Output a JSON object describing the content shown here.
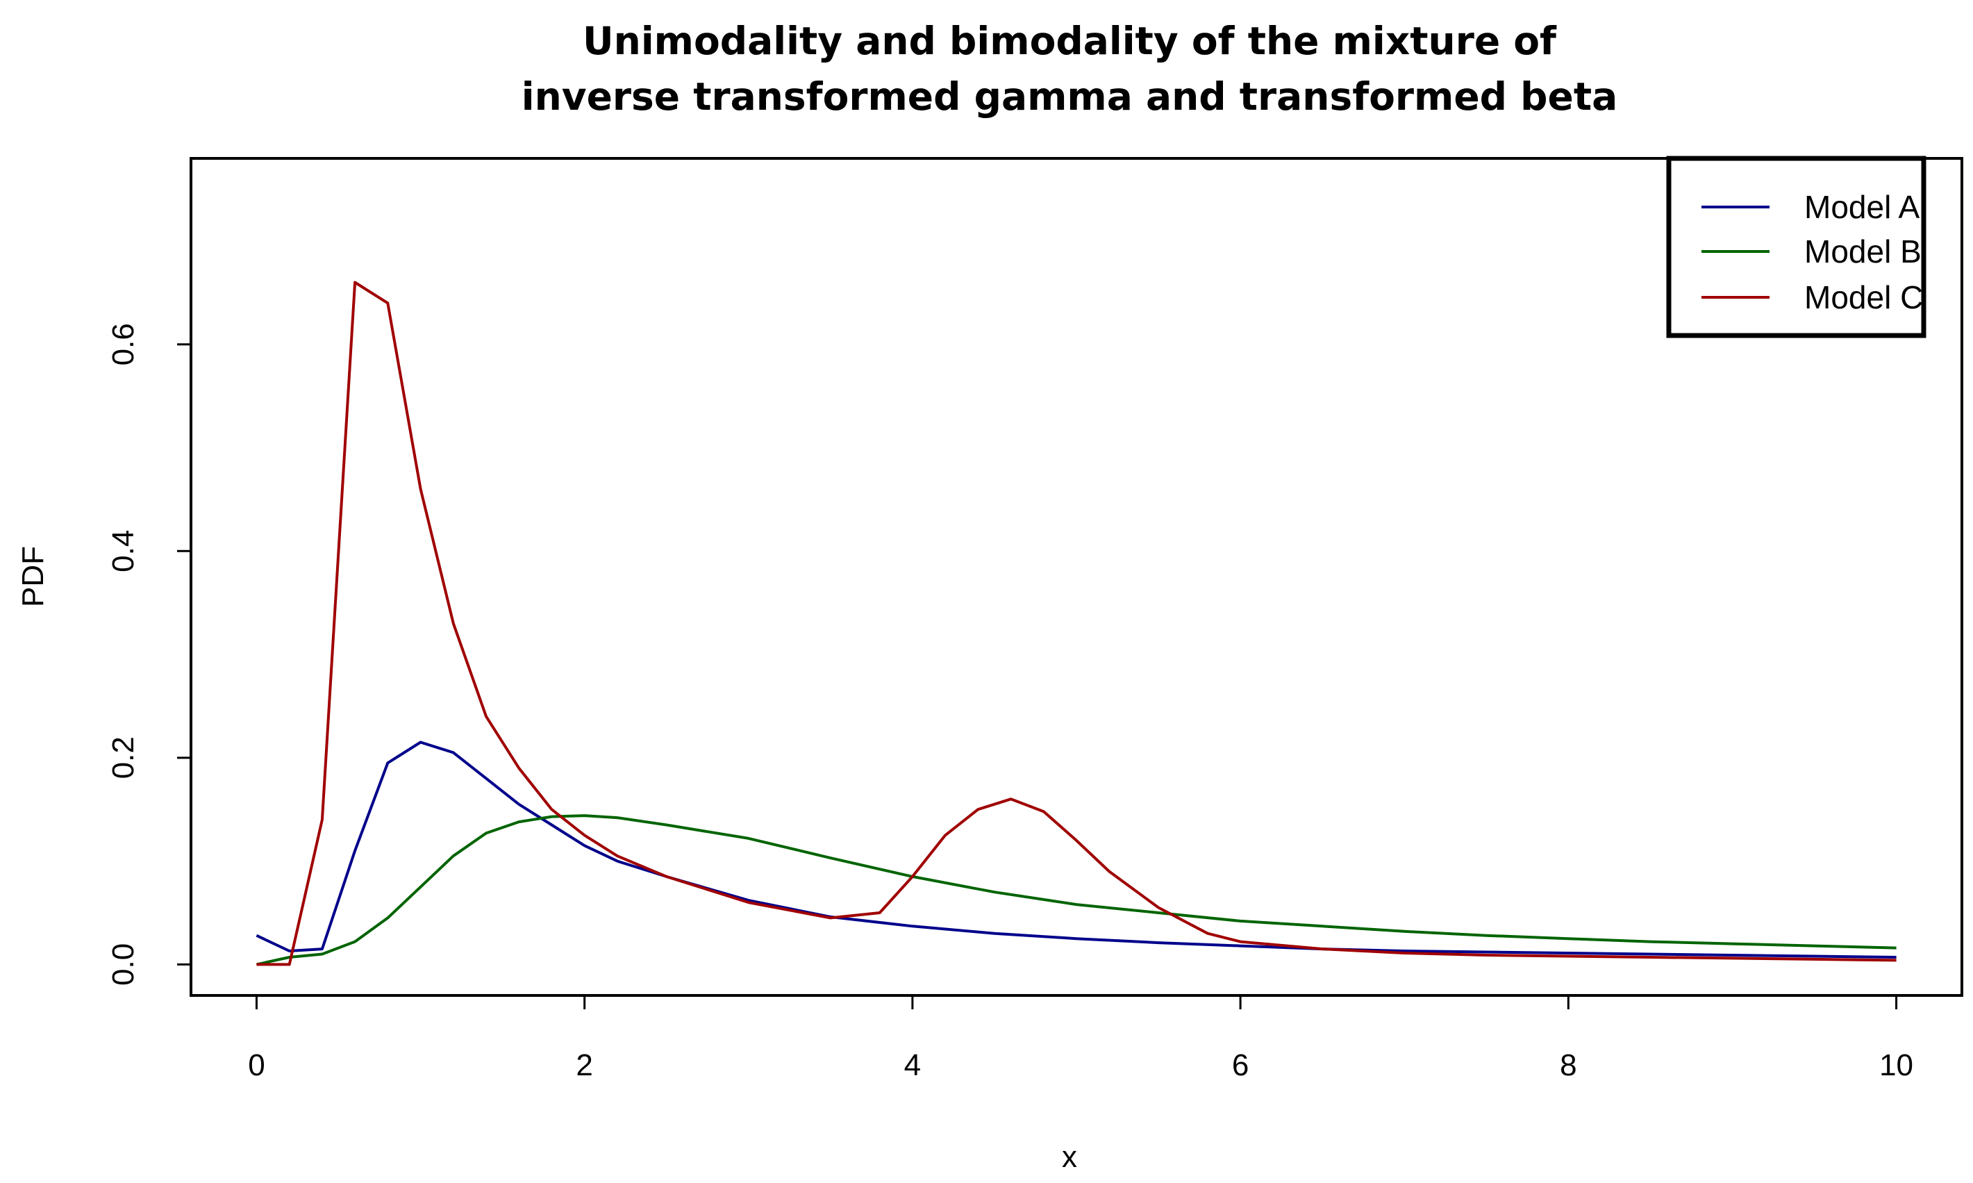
{
  "chart_data": {
    "type": "line",
    "title_lines": [
      "Unimodality and bimodality of the mixture of",
      "inverse transformed gamma and transformed beta"
    ],
    "xlabel": "x",
    "ylabel": "PDF",
    "xlim": [
      -0.4,
      10.4
    ],
    "ylim": [
      -0.03,
      0.78
    ],
    "xticks": [
      0,
      2,
      4,
      6,
      8,
      10
    ],
    "xtick_labels": [
      "0",
      "2",
      "4",
      "6",
      "8",
      "10"
    ],
    "yticks": [
      0.0,
      0.2,
      0.4,
      0.6
    ],
    "ytick_labels": [
      "0.0",
      "0.2",
      "0.4",
      "0.6"
    ],
    "grid": false,
    "legend_position": "top-right",
    "series": [
      {
        "name": "Model A",
        "color": "#00008B",
        "x": [
          0,
          0.2,
          0.4,
          0.6,
          0.8,
          1.0,
          1.2,
          1.4,
          1.6,
          1.8,
          2.0,
          2.2,
          2.5,
          3.0,
          3.5,
          4.0,
          4.5,
          5.0,
          5.5,
          6.0,
          6.5,
          7.0,
          7.5,
          8.0,
          8.5,
          9.0,
          9.5,
          10.0
        ],
        "y": [
          0.028,
          0.013,
          0.015,
          0.11,
          0.195,
          0.215,
          0.205,
          0.18,
          0.155,
          0.135,
          0.115,
          0.1,
          0.085,
          0.062,
          0.046,
          0.037,
          0.03,
          0.025,
          0.021,
          0.018,
          0.015,
          0.013,
          0.012,
          0.011,
          0.01,
          0.009,
          0.008,
          0.007
        ]
      },
      {
        "name": "Model B",
        "color": "#006400",
        "x": [
          0,
          0.2,
          0.4,
          0.6,
          0.8,
          1.0,
          1.2,
          1.4,
          1.6,
          1.8,
          2.0,
          2.2,
          2.5,
          3.0,
          3.5,
          4.0,
          4.5,
          5.0,
          5.5,
          6.0,
          6.5,
          7.0,
          7.5,
          8.0,
          8.5,
          9.0,
          9.5,
          10.0
        ],
        "y": [
          0.0,
          0.007,
          0.01,
          0.022,
          0.045,
          0.075,
          0.105,
          0.127,
          0.138,
          0.143,
          0.144,
          0.142,
          0.135,
          0.122,
          0.103,
          0.085,
          0.07,
          0.058,
          0.05,
          0.042,
          0.037,
          0.032,
          0.028,
          0.025,
          0.022,
          0.02,
          0.018,
          0.016
        ]
      },
      {
        "name": "Model C",
        "color": "#A00000",
        "x": [
          0,
          0.2,
          0.4,
          0.6,
          0.8,
          1.0,
          1.2,
          1.4,
          1.6,
          1.8,
          2.0,
          2.2,
          2.5,
          3.0,
          3.5,
          3.8,
          4.0,
          4.2,
          4.4,
          4.6,
          4.8,
          5.0,
          5.2,
          5.5,
          5.8,
          6.0,
          6.5,
          7.0,
          7.5,
          8.0,
          8.5,
          9.0,
          9.5,
          10.0
        ],
        "y": [
          0.0,
          0.0,
          0.14,
          0.66,
          0.64,
          0.46,
          0.33,
          0.24,
          0.19,
          0.15,
          0.125,
          0.105,
          0.085,
          0.06,
          0.045,
          0.05,
          0.085,
          0.125,
          0.15,
          0.16,
          0.148,
          0.12,
          0.09,
          0.055,
          0.03,
          0.022,
          0.015,
          0.011,
          0.009,
          0.008,
          0.007,
          0.006,
          0.005,
          0.004
        ]
      }
    ]
  }
}
